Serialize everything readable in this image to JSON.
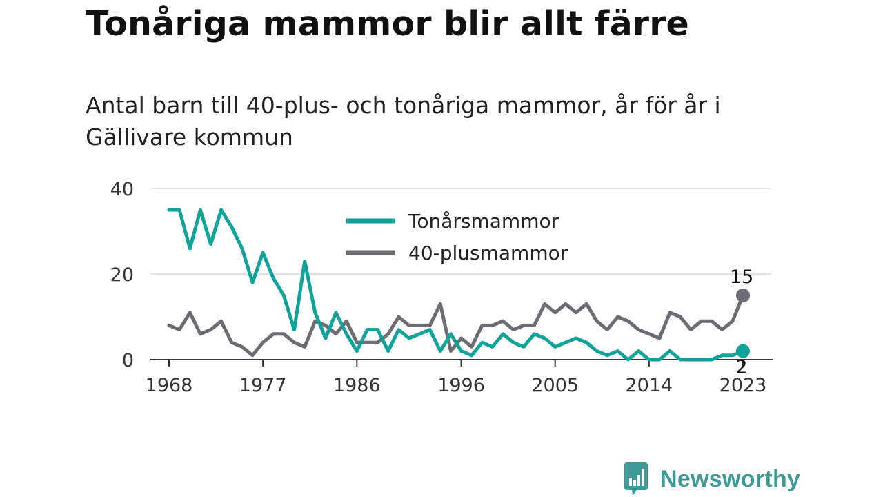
{
  "title": "Tonåriga mammor blir allt färre",
  "subtitle": "Antal barn till 40-plus- och tonåriga mammor, år för år i Gällivare kommun",
  "brand": {
    "name": "Newsworthy",
    "icon": "newsworthy-logo-icon",
    "color": "#3d9a96"
  },
  "chart_data": {
    "type": "line",
    "ylim": [
      0,
      40
    ],
    "yticks": [
      0,
      20,
      40
    ],
    "xlim": [
      1968,
      2023
    ],
    "xticks": [
      1968,
      1977,
      1986,
      1996,
      2005,
      2014,
      2023
    ],
    "grid": true,
    "legend_position": "top-center",
    "years": [
      1968,
      1969,
      1970,
      1971,
      1972,
      1973,
      1974,
      1975,
      1976,
      1977,
      1978,
      1979,
      1980,
      1981,
      1982,
      1983,
      1984,
      1985,
      1986,
      1987,
      1988,
      1989,
      1990,
      1991,
      1992,
      1993,
      1994,
      1995,
      1996,
      1997,
      1998,
      1999,
      2000,
      2001,
      2002,
      2003,
      2004,
      2005,
      2006,
      2007,
      2008,
      2009,
      2010,
      2011,
      2012,
      2013,
      2014,
      2015,
      2016,
      2017,
      2018,
      2019,
      2020,
      2021,
      2022,
      2023
    ],
    "series": [
      {
        "name": "Tonårsmammor",
        "color": "#0fa39a",
        "values": [
          35,
          35,
          26,
          35,
          27,
          35,
          31,
          26,
          18,
          25,
          19,
          15,
          7,
          23,
          11,
          5,
          11,
          6,
          2,
          7,
          7,
          2,
          7,
          5,
          6,
          7,
          2,
          6,
          2,
          1,
          4,
          3,
          6,
          4,
          3,
          6,
          5,
          3,
          4,
          5,
          4,
          2,
          1,
          2,
          0,
          2,
          0,
          0,
          2,
          0,
          0,
          0,
          0,
          1,
          1,
          2
        ],
        "end_label": "2"
      },
      {
        "name": "40-plusmammor",
        "color": "#6e6c72",
        "values": [
          8,
          7,
          11,
          6,
          7,
          9,
          4,
          3,
          1,
          4,
          6,
          6,
          4,
          3,
          9,
          8,
          6,
          9,
          4,
          4,
          4,
          6,
          10,
          8,
          8,
          8,
          13,
          2,
          5,
          3,
          8,
          8,
          9,
          7,
          8,
          8,
          13,
          11,
          13,
          11,
          13,
          9,
          7,
          10,
          9,
          7,
          6,
          5,
          11,
          10,
          7,
          9,
          9,
          7,
          9,
          15
        ],
        "end_label": "15"
      }
    ]
  }
}
